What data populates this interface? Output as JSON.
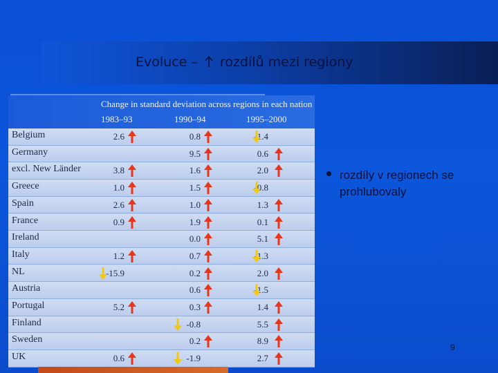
{
  "slide": {
    "title_left": "Evoluce –",
    "title_right": "rozdílů mezi regiony",
    "bullet": "rozdíly v regionech se prohlubovaly",
    "page_number": "9"
  },
  "table": {
    "header_title": "Change in standard deviation across regions in each nation",
    "columns": [
      "1983–93",
      "1990–94",
      "1995–2000"
    ],
    "colors": {
      "up": "#e8361c",
      "down": "#f2c80f"
    },
    "rows": [
      {
        "country": "Belgium",
        "values": [
          "2.6",
          "0.8",
          "-1.4"
        ],
        "dirs": [
          "up",
          "up",
          "down"
        ]
      },
      {
        "country": "Germany",
        "values": [
          "",
          "9.5",
          "0.6"
        ],
        "dirs": [
          "",
          "up",
          "up"
        ]
      },
      {
        "country": "excl. New Länder",
        "values": [
          "3.8",
          "1.6",
          "2.0"
        ],
        "dirs": [
          "up",
          "up",
          "up"
        ]
      },
      {
        "country": "Greece",
        "values": [
          "1.0",
          "1.5",
          "-0.8"
        ],
        "dirs": [
          "up",
          "up",
          "down"
        ]
      },
      {
        "country": "Spain",
        "values": [
          "2.6",
          "1.0",
          "1.3"
        ],
        "dirs": [
          "up",
          "up",
          "up"
        ]
      },
      {
        "country": "France",
        "values": [
          "0.9",
          "1.9",
          "0.1"
        ],
        "dirs": [
          "up",
          "up",
          "up"
        ]
      },
      {
        "country": "Ireland",
        "values": [
          "",
          "0.0",
          "5.1"
        ],
        "dirs": [
          "",
          "up",
          "up"
        ]
      },
      {
        "country": "Italy",
        "values": [
          "1.2",
          "0.7",
          "-1.3"
        ],
        "dirs": [
          "up",
          "up",
          "down"
        ]
      },
      {
        "country": "NL",
        "values": [
          "-15.9",
          "0.2",
          "2.0"
        ],
        "dirs": [
          "down",
          "up",
          "up"
        ]
      },
      {
        "country": "Austria",
        "values": [
          "",
          "0.6",
          "-1.5"
        ],
        "dirs": [
          "",
          "up",
          "down"
        ]
      },
      {
        "country": "Portugal",
        "values": [
          "5.2",
          "0.3",
          "1.4"
        ],
        "dirs": [
          "up",
          "up",
          "up"
        ]
      },
      {
        "country": "Finland",
        "values": [
          "",
          "-0.8",
          "5.5"
        ],
        "dirs": [
          "",
          "down",
          "up"
        ]
      },
      {
        "country": "Sweden",
        "values": [
          "",
          "0.2",
          "8.9"
        ],
        "dirs": [
          "",
          "up",
          "up"
        ]
      },
      {
        "country": "UK",
        "values": [
          "0.6",
          "-1.9",
          "2.7"
        ],
        "dirs": [
          "up",
          "down",
          "up"
        ]
      }
    ]
  }
}
